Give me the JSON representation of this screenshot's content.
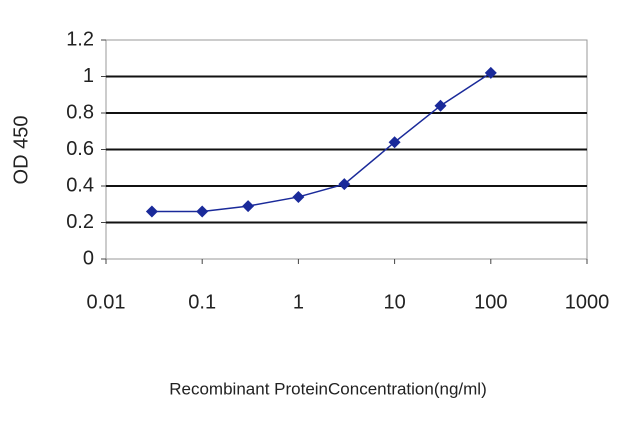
{
  "chart_data": {
    "type": "line",
    "x_label": "Recombinant ProteinConcentration(ng/ml)",
    "y_label": "OD 450",
    "x": [
      0.03,
      0.1,
      0.3,
      1,
      3,
      10,
      30,
      100
    ],
    "series": [
      {
        "color": "#1a2a9a",
        "values": [
          0.26,
          0.26,
          0.29,
          0.34,
          0.41,
          0.64,
          0.84,
          1.02
        ]
      }
    ],
    "xlim": [
      0.01,
      1000
    ],
    "xticks": [
      0.01,
      0.1,
      1,
      10,
      100,
      1000
    ],
    "x_log": true,
    "ylim": [
      0,
      1.2
    ],
    "yticks": [
      0,
      0.2,
      0.4,
      0.6,
      0.8,
      1,
      1.2
    ],
    "grid": true
  }
}
